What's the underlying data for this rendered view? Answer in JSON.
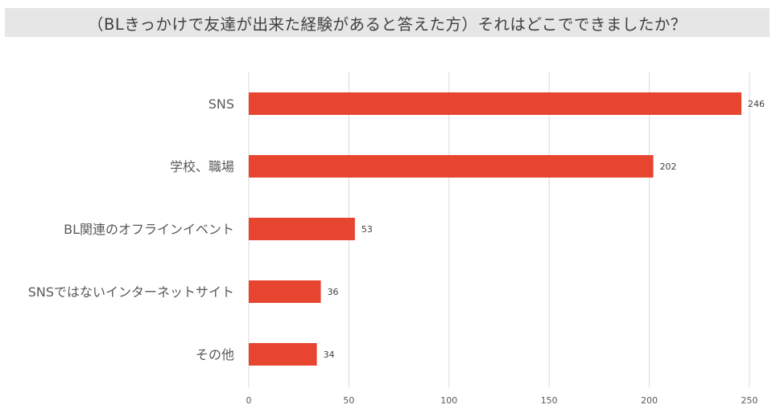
{
  "chart_data": {
    "type": "bar",
    "orientation": "horizontal",
    "title": "（BLきっかけで友達が出来た経験があると答えた方）それはどこでできましたか？",
    "xlabel": "",
    "ylabel": "",
    "categories": [
      "SNS",
      "学校、職場",
      "BL関連のオフラインイベント",
      "SNSではないインターネットサイト",
      "その他"
    ],
    "values": [
      246,
      202,
      53,
      36,
      34
    ],
    "xlim": [
      0,
      250
    ],
    "xticks": [
      0,
      50,
      100,
      150,
      200,
      250
    ],
    "grid": "vertical",
    "legend": "none",
    "colors": {
      "bar": "#e84530",
      "grid": "#d9d9d9",
      "text": "#595959",
      "title_bg": "#e6e6e6"
    }
  }
}
